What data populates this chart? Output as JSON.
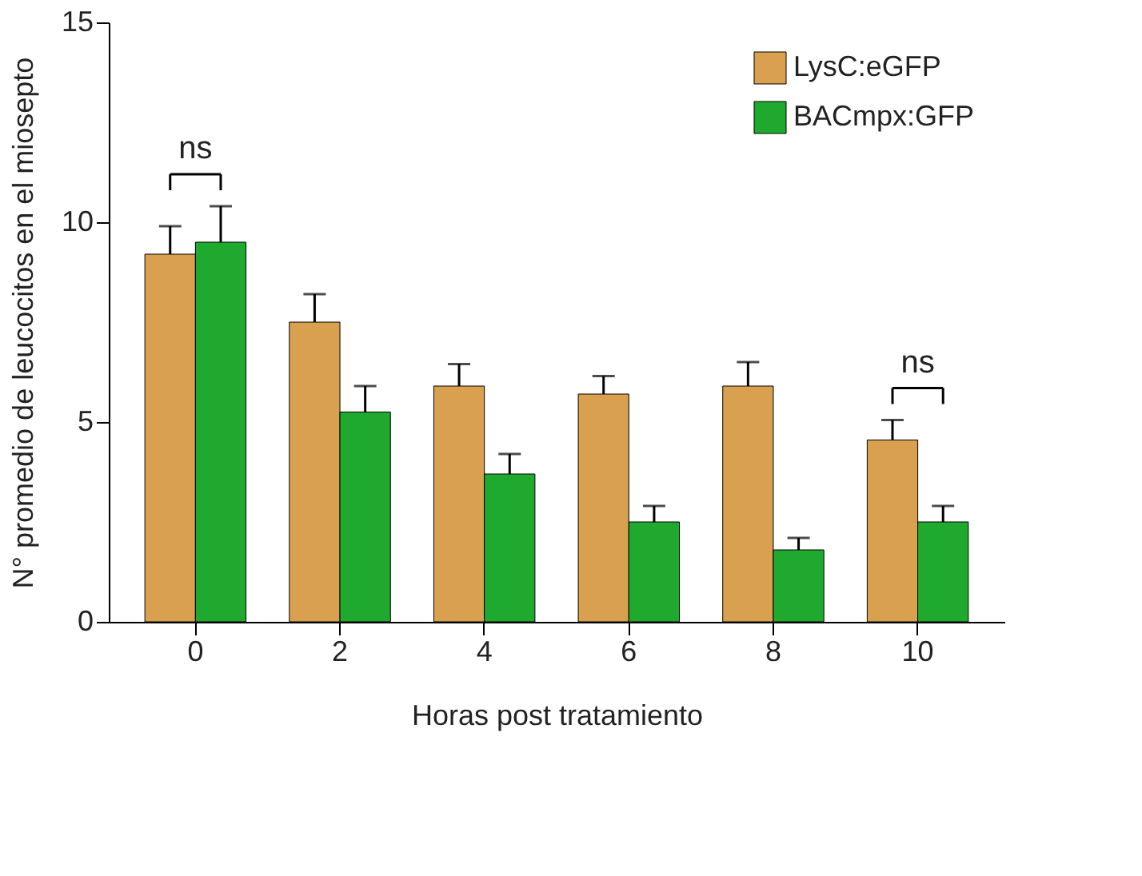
{
  "chart_data": {
    "type": "bar",
    "xlabel": "Horas post tratamiento",
    "ylabel": "N° promedio de leucocitos en el miosepto",
    "categories": [
      "0",
      "2",
      "4",
      "6",
      "8",
      "10"
    ],
    "series": [
      {
        "name": "LysC:eGFP",
        "color": "#d9a04f",
        "values": [
          9.2,
          7.5,
          5.9,
          5.7,
          5.9,
          4.55
        ],
        "errors": [
          0.7,
          0.7,
          0.55,
          0.45,
          0.6,
          0.5
        ]
      },
      {
        "name": "BACmpx:GFP",
        "color": "#1faa2f",
        "values": [
          9.5,
          5.25,
          3.7,
          2.5,
          1.8,
          2.5
        ],
        "errors": [
          0.9,
          0.65,
          0.5,
          0.4,
          0.3,
          0.4
        ]
      }
    ],
    "ylim": [
      0,
      15
    ],
    "yticks": [
      0,
      5,
      10,
      15
    ],
    "grid": false,
    "legend": "top right",
    "annotations": [
      "ns",
      "ns"
    ]
  }
}
